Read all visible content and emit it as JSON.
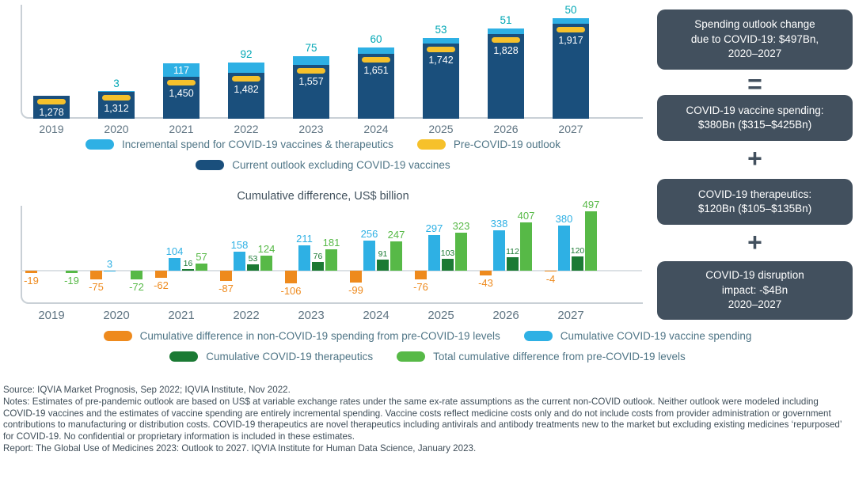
{
  "colors": {
    "dark_blue": "#1A4F7C",
    "light_blue": "#2EB0E4",
    "yellow": "#F6C12B",
    "orange": "#EE8A1D",
    "dark_green": "#1B7A34",
    "green": "#57B947",
    "teal_label": "#00A7B5",
    "slate": "#42505E",
    "axis_gray": "#C9D0D6",
    "tick_text": "#5F7482",
    "legend_text": "#4F7586",
    "footer_text": "#3E4D58"
  },
  "chart_data": [
    {
      "type": "bar",
      "stacked": true,
      "title": "",
      "categories": [
        "2019",
        "2020",
        "2021",
        "2022",
        "2023",
        "2024",
        "2025",
        "2026",
        "2027"
      ],
      "series": [
        {
          "name": "Current outlook excluding COVID-19 vaccines",
          "color_key": "dark_blue",
          "values": [
            1278,
            1312,
            1450,
            1482,
            1557,
            1651,
            1742,
            1828,
            1917
          ]
        },
        {
          "name": "Incremental spend for COVID-19 vaccines & therapeutics",
          "color_key": "light_blue",
          "values": [
            0,
            3,
            117,
            92,
            75,
            60,
            53,
            51,
            50
          ]
        },
        {
          "name": "Pre-COVID-19 outlook",
          "color_key": "yellow",
          "style": "band-marker"
        }
      ]
    },
    {
      "type": "bar",
      "stacked": false,
      "title": "Cumulative difference, US$ billion",
      "categories": [
        "2019",
        "2020",
        "2021",
        "2022",
        "2023",
        "2024",
        "2025",
        "2026",
        "2027"
      ],
      "series": [
        {
          "name": "Cumulative difference in non-COVID-19 spending from pre-COVID-19 levels",
          "color_key": "orange",
          "values": [
            -19,
            -75,
            -62,
            -87,
            -106,
            -99,
            -76,
            -43,
            -4
          ]
        },
        {
          "name": "Cumulative COVID-19 vaccine spending",
          "color_key": "light_blue",
          "values": [
            0,
            3,
            104,
            158,
            211,
            256,
            297,
            338,
            380
          ]
        },
        {
          "name": "Cumulative COVID-19 therapeutics",
          "color_key": "dark_green",
          "values": [
            0,
            0,
            16,
            53,
            76,
            91,
            103,
            112,
            120
          ]
        },
        {
          "name": "Total cumulative difference from pre-COVID-19 levels",
          "color_key": "green",
          "values": [
            -19,
            -72,
            57,
            124,
            181,
            247,
            323,
            407,
            497
          ]
        }
      ]
    }
  ],
  "legend_top": {
    "row1": [
      {
        "label": "Incremental spend for COVID-19 vaccines & therapeutics",
        "color_key": "light_blue"
      },
      {
        "label": "Pre-COVID-19 outlook",
        "color_key": "yellow"
      }
    ],
    "row2": [
      {
        "label": "Current outlook excluding COVID-19 vaccines",
        "color_key": "dark_blue"
      }
    ]
  },
  "legend_bottom": {
    "row1": [
      {
        "label": "Cumulative difference in non-COVID-19 spending from pre-COVID-19 levels",
        "color_key": "orange"
      },
      {
        "label": "Cumulative COVID-19 vaccine spending",
        "color_key": "light_blue"
      }
    ],
    "row2": [
      {
        "label": "Cumulative COVID-19 therapeutics",
        "color_key": "dark_green"
      },
      {
        "label": "Total cumulative difference from pre-COVID-19 levels",
        "color_key": "green"
      }
    ]
  },
  "sidebar": {
    "box1": "Spending outlook change\ndue to COVID-19: $497Bn,\n2020–2027",
    "op1": "=",
    "box2": "COVID-19 vaccine spending:\n$380Bn ($315–$425Bn)",
    "op2": "+",
    "box3": "COVID-19 therapeutics:\n$120Bn ($105–$135Bn)",
    "op3": "+",
    "box4": "COVID-19 disruption\nimpact: -$4Bn\n2020–2027"
  },
  "footer": {
    "source": "Source: IQVIA Market Prognosis, Sep 2022; IQVIA Institute, Nov 2022.",
    "notes": "Notes: Estimates of pre-pandemic outlook are based on US$ at variable exchange rates under the same ex-rate assumptions as the current non-COVID outlook. Neither outlook were modeled including COVID-19 vaccines and the estimates of vaccine spending are entirely incremental spending. Vaccine costs reflect medicine costs only and do not include costs from provider administration or government contributions to manufacturing or distribution costs. COVID-19 therapeutics are novel therapeutics including antivirals and antibody treatments new to the market but excluding existing medicines ‘repurposed’ for COVID-19. No confidential or proprietary information is included in these estimates.",
    "report": "Report: The Global Use of Medicines 2023: Outlook to 2027. IQVIA Institute for Human Data Science, January 2023."
  }
}
